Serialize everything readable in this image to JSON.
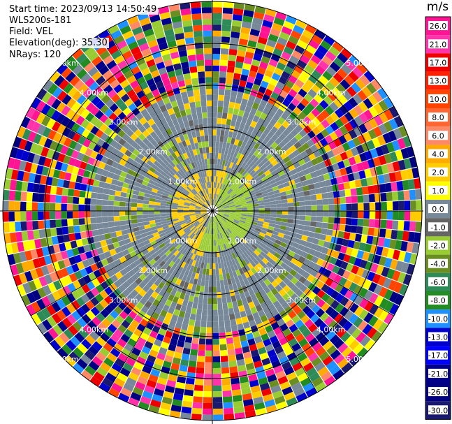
{
  "info": {
    "start_time": "Start time: 2023/09/13 14:50:49",
    "station": "WLS200s-181",
    "field": "Field: VEL",
    "elevation": "Elevation(deg): 35.30",
    "nrays": "NRays: 120"
  },
  "chart_data": {
    "type": "heatmap",
    "projection": "polar-ppi",
    "field": "VEL",
    "n_rays": 120,
    "range_ring_labels": [
      "1.00km",
      "2.00km",
      "3.00km",
      "4.00km",
      "5.00km"
    ],
    "colorbar": {
      "unit": "m/s",
      "ticks": [
        "26.0",
        "21.0",
        "17.0",
        "13.0",
        "10.0",
        "8.0",
        "6.0",
        "4.0",
        "2.0",
        "1.0",
        "0.0",
        "-1.0",
        "-2.0",
        "-4.0",
        "-6.0",
        "-8.0",
        "-10.0",
        "-13.0",
        "-17.0",
        "-21.0",
        "-26.0",
        "-30.0"
      ],
      "colors": [
        "#ff1493",
        "#ff33aa",
        "#ee0000",
        "#ff2200",
        "#ff4400",
        "#ff6633",
        "#ff8866",
        "#ffaa00",
        "#ffcc00",
        "#ffff00",
        "#778899",
        "#666666",
        "#99cc33",
        "#6b8e23",
        "#2e8b57",
        "#228b22",
        "#1e90ff",
        "#0000cd",
        "#0000ff",
        "#00008b",
        "#000080",
        "#191970"
      ]
    }
  }
}
